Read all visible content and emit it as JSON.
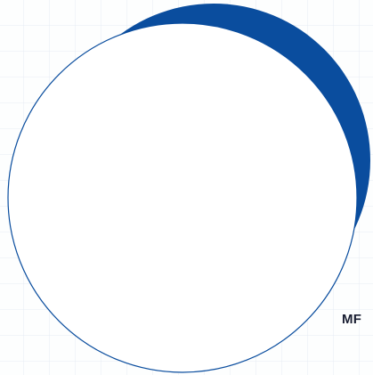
{
  "colors": {
    "background": "#fdfefe",
    "grid_line": "#e6ecf4",
    "crescent": "#0a4d9e",
    "circle_fill": "#ffffff",
    "circle_stroke": "#0a4d9e",
    "text": "#1a1f33"
  },
  "corner_text": "MF"
}
